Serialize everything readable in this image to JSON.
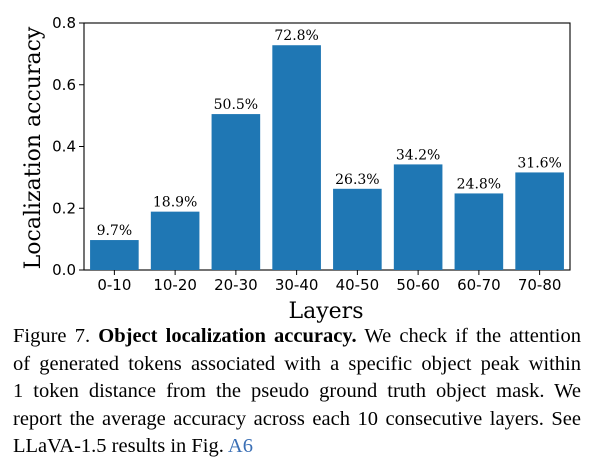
{
  "chart_data": {
    "type": "bar",
    "categories": [
      "0-10",
      "10-20",
      "20-30",
      "30-40",
      "40-50",
      "50-60",
      "60-70",
      "70-80"
    ],
    "values": [
      0.097,
      0.189,
      0.505,
      0.728,
      0.263,
      0.342,
      0.248,
      0.316
    ],
    "data_labels": [
      "9.7%",
      "18.9%",
      "50.5%",
      "72.8%",
      "26.3%",
      "34.2%",
      "24.8%",
      "31.6%"
    ],
    "xlabel": "Layers",
    "ylabel": "Localization accuracy",
    "ylim": [
      0.0,
      0.8
    ],
    "yticks": [
      0.0,
      0.2,
      0.4,
      0.6,
      0.8
    ],
    "ytick_labels": [
      "0.0",
      "0.2",
      "0.4",
      "0.6",
      "0.8"
    ],
    "bar_color": "#1f77b4",
    "grid": false,
    "legend": "none"
  },
  "caption": {
    "figure_label": "Figure 7.",
    "title": "Object localization accuracy.",
    "line1_rest": "We check if the attention",
    "line2": "of generated tokens associated with a specific object peak within",
    "line3": "1 token distance from the pseudo ground truth object mask.  We",
    "line4": "report the average accuracy across each 10 consecutive layers. See",
    "line5_pre": "LLaVA-1.5 results in Fig.",
    "line5_ref": "A6",
    "ref_color": "#3a6fb5"
  }
}
